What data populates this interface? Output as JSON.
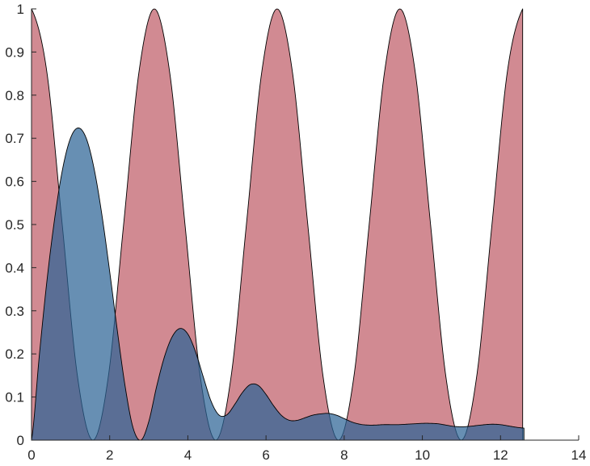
{
  "chart_data": {
    "type": "area",
    "title": "",
    "xlabel": "",
    "ylabel": "",
    "xlim": [
      0,
      14
    ],
    "ylim": [
      0,
      1
    ],
    "xticks": [
      "0",
      "2",
      "4",
      "6",
      "8",
      "10",
      "12",
      "14"
    ],
    "yticks": [
      "0",
      "0.1",
      "0.2",
      "0.3",
      "0.4",
      "0.5",
      "0.6",
      "0.7",
      "0.8",
      "0.9",
      "1"
    ],
    "grid": false,
    "legend": "none",
    "series": [
      {
        "color": "#c2636d",
        "opacity": 0.75,
        "x": [
          0,
          0.3927,
          0.7854,
          1.1781,
          1.5708,
          1.9635,
          2.3562,
          2.7489,
          3.1416,
          3.5343,
          3.927,
          4.3197,
          4.7124,
          5.1051,
          5.4978,
          5.8905,
          6.2832,
          6.6759,
          7.0686,
          7.4613,
          7.854,
          8.2467,
          8.6394,
          9.0321,
          9.4248,
          9.8175,
          10.2102,
          10.6029,
          10.9956,
          11.3883,
          11.781,
          12.1737,
          12.5664
        ],
        "y": [
          1,
          0.8536,
          0.5,
          0.1464,
          0,
          0.1464,
          0.5,
          0.8536,
          1,
          0.8536,
          0.5,
          0.1464,
          0,
          0.1464,
          0.5,
          0.8536,
          1,
          0.8536,
          0.5,
          0.1464,
          0,
          0.1464,
          0.5,
          0.8536,
          1,
          0.8536,
          0.5,
          0.1464,
          0,
          0.1464,
          0.5,
          0.8536,
          1
        ]
      },
      {
        "color": "#2c6496",
        "opacity": 0.72,
        "x": [
          0,
          0.2,
          0.4,
          0.6,
          0.8,
          1.0,
          1.2,
          1.4,
          1.6,
          1.8,
          2.0,
          2.2,
          2.4,
          2.6,
          2.8,
          3.0,
          3.2,
          3.4,
          3.6,
          3.8,
          4.0,
          4.2,
          4.4,
          4.6,
          4.8,
          5.0,
          5.2,
          5.4,
          5.6,
          5.8,
          6.0,
          6.2,
          6.4,
          6.6,
          6.8,
          7.0,
          7.2,
          7.4,
          7.6,
          7.8,
          8.0,
          8.2,
          8.4,
          8.6,
          8.8,
          9.0,
          9.2,
          9.4,
          9.6,
          9.8,
          10.0,
          10.2,
          10.4,
          10.6,
          10.8,
          11.0,
          11.2,
          11.4,
          11.6,
          11.8,
          12.0,
          12.2,
          12.4,
          12.6
        ],
        "y": [
          0,
          0.197,
          0.374,
          0.519,
          0.631,
          0.701,
          0.724,
          0.7,
          0.63,
          0.523,
          0.391,
          0.251,
          0.122,
          0.028,
          0.0,
          0.043,
          0.124,
          0.193,
          0.24,
          0.259,
          0.246,
          0.204,
          0.145,
          0.089,
          0.058,
          0.059,
          0.083,
          0.111,
          0.129,
          0.127,
          0.106,
          0.079,
          0.057,
          0.046,
          0.046,
          0.052,
          0.058,
          0.061,
          0.062,
          0.058,
          0.05,
          0.042,
          0.037,
          0.035,
          0.035,
          0.036,
          0.036,
          0.036,
          0.037,
          0.038,
          0.039,
          0.039,
          0.038,
          0.035,
          0.032,
          0.031,
          0.032,
          0.034,
          0.036,
          0.037,
          0.036,
          0.033,
          0.03,
          0.028
        ]
      }
    ]
  }
}
